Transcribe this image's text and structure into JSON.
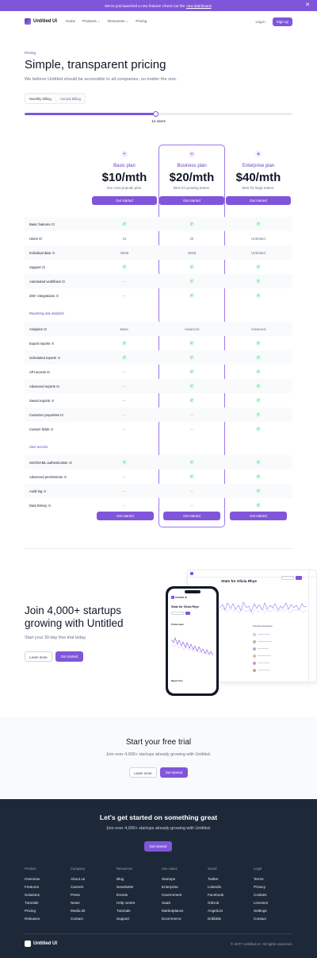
{
  "banner": {
    "text": "We've just launched a new feature! Check out the",
    "link": "new dashboard",
    "link_suffix": ".",
    "close": "✕"
  },
  "nav": {
    "logo": "Untitled UI",
    "links": [
      "Home",
      "Products",
      "Resources",
      "Pricing"
    ],
    "login": "Log in",
    "signup": "Sign up"
  },
  "hero": {
    "eyebrow": "Pricing",
    "title": "Simple, transparent pricing",
    "subtitle": "We believe Untitled should be accessible to all companies, no matter the size."
  },
  "billing": {
    "monthly": "Monthly billing",
    "annual": "Annual billing"
  },
  "users_slider": {
    "label": "14 users",
    "fraction": 0.49
  },
  "plans": [
    {
      "name": "Basic plan",
      "price": "$10/mth",
      "desc": "Our most popular plan.",
      "cta": "Get started"
    },
    {
      "name": "Business plan",
      "price": "$20/mth",
      "desc": "Best for growing teams.",
      "cta": "Get started"
    },
    {
      "name": "Enterprise plan",
      "price": "$40/mth",
      "desc": "Best for large teams.",
      "cta": "Get started"
    }
  ],
  "sections": [
    "",
    "Reporting and analytics",
    "User access"
  ],
  "features": [
    {
      "label": "Basic features",
      "values": [
        "check",
        "check",
        "check"
      ],
      "section": 0
    },
    {
      "label": "Users",
      "values": [
        "10",
        "20",
        "Unlimited"
      ],
      "section": 0
    },
    {
      "label": "Individual data",
      "values": [
        "20GB",
        "40GB",
        "Unlimited"
      ],
      "section": 0
    },
    {
      "label": "Support",
      "values": [
        "check",
        "check",
        "check"
      ],
      "section": 0
    },
    {
      "label": "Automated workflows",
      "values": [
        "dash",
        "check",
        "check"
      ],
      "section": 0
    },
    {
      "label": "200+ integrations",
      "values": [
        "dash",
        "check",
        "check"
      ],
      "section": 0
    },
    {
      "label": "Analytics",
      "values": [
        "Basic",
        "Advanced",
        "Advanced"
      ],
      "section": 1
    },
    {
      "label": "Export reports",
      "values": [
        "check",
        "check",
        "check"
      ],
      "section": 1
    },
    {
      "label": "Scheduled reports",
      "values": [
        "check",
        "check",
        "check"
      ],
      "section": 1
    },
    {
      "label": "API access",
      "values": [
        "dash",
        "check",
        "check"
      ],
      "section": 1
    },
    {
      "label": "Advanced reports",
      "values": [
        "dash",
        "check",
        "check"
      ],
      "section": 1
    },
    {
      "label": "Saved reports",
      "values": [
        "dash",
        "check",
        "check"
      ],
      "section": 1
    },
    {
      "label": "Customer properties",
      "values": [
        "dash",
        "dash",
        "check"
      ],
      "section": 1
    },
    {
      "label": "Custom fields",
      "values": [
        "dash",
        "dash",
        "check"
      ],
      "section": 1
    },
    {
      "label": "SSO/SAML authentication",
      "values": [
        "check",
        "check",
        "check"
      ],
      "section": 2
    },
    {
      "label": "Advanced permissions",
      "values": [
        "dash",
        "check",
        "check"
      ],
      "section": 2
    },
    {
      "label": "Audit log",
      "values": [
        "dash",
        "dash",
        "check"
      ],
      "section": 2
    },
    {
      "label": "Data history",
      "values": [
        "dash",
        "dash",
        "check"
      ],
      "section": 2
    }
  ],
  "join": {
    "title": "Join 4,000+ startups growing with Untitled",
    "subtitle": "Start your 30-day free trial today.",
    "learn": "Learn more",
    "start": "Get started"
  },
  "mockup": {
    "title": "Stats for Olivia Rhye",
    "phone_logo": "Untitled UI",
    "profile_views": "Profile views",
    "favorite": "Favorite designers",
    "report": "Report Tom"
  },
  "trial": {
    "title": "Start your free trial",
    "subtitle": "Join over 4,000+ startups already growing with Untitled.",
    "learn": "Learn more",
    "start": "Get started"
  },
  "footer": {
    "title": "Let's get started on something great",
    "subtitle": "Join over 4,000+ startups already growing with Untitled.",
    "cta": "Get started",
    "columns": [
      {
        "heading": "Product",
        "items": [
          "Overview",
          "Features",
          "Solutions",
          "Tutorials",
          "Pricing",
          "Releases"
        ]
      },
      {
        "heading": "Company",
        "items": [
          "About us",
          "Careers",
          "Press",
          "News",
          "Media kit",
          "Contact"
        ]
      },
      {
        "heading": "Resources",
        "items": [
          "Blog",
          "Newsletter",
          "Events",
          "Help centre",
          "Tutorials",
          "Support"
        ]
      },
      {
        "heading": "Use cases",
        "items": [
          "Startups",
          "Enterprise",
          "Government",
          "SaaS",
          "Marketplaces",
          "Ecommerce"
        ]
      },
      {
        "heading": "Social",
        "items": [
          "Twitter",
          "LinkedIn",
          "Facebook",
          "GitHub",
          "AngelList",
          "Dribbble"
        ]
      },
      {
        "heading": "Legal",
        "items": [
          "Terms",
          "Privacy",
          "Cookies",
          "Licenses",
          "Settings",
          "Contact"
        ]
      }
    ],
    "logo": "Untitled UI",
    "copyright": "© 2077 Untitled UI. All rights reserved."
  },
  "colors": {
    "brand": "#7f56d9",
    "brand_dark": "#6941c6",
    "success": "#039855",
    "footer_bg": "#1d2939"
  }
}
